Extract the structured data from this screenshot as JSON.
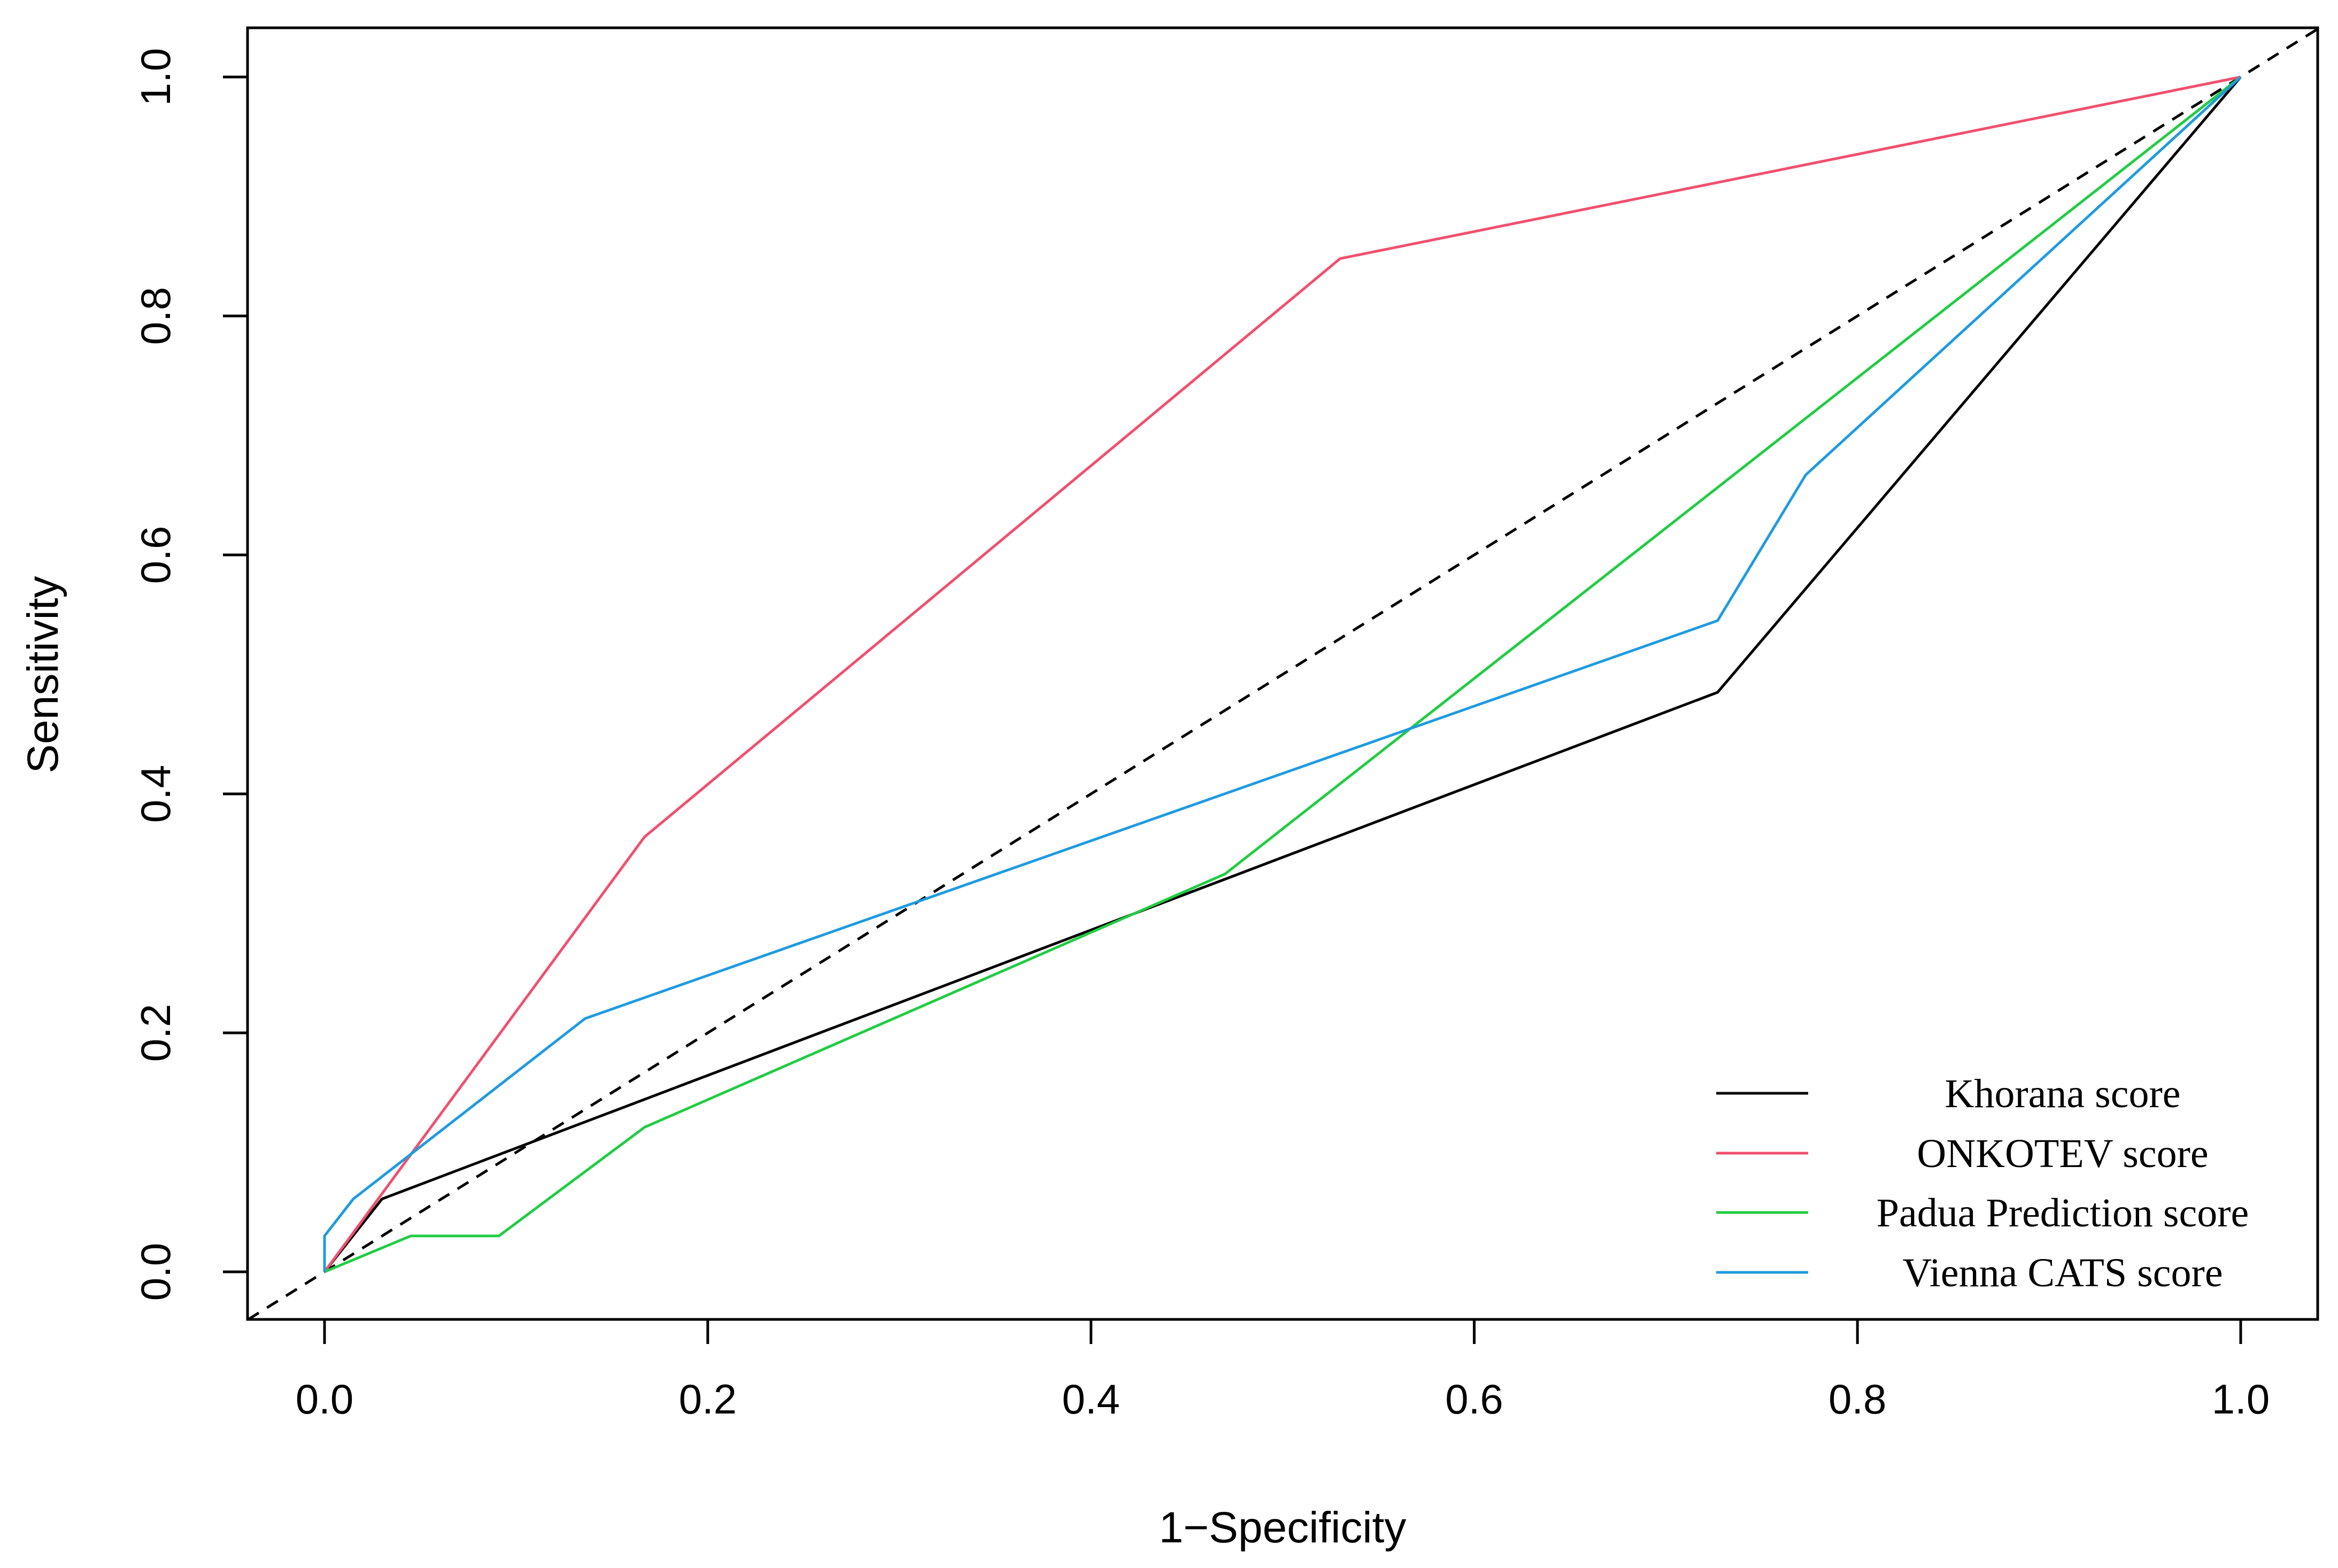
{
  "chart_data": {
    "type": "line",
    "title": "",
    "xlabel": "1−Specificity",
    "ylabel": "Sensitivity",
    "xlim": [
      -0.04,
      1.04
    ],
    "ylim": [
      -0.04,
      1.04
    ],
    "xticks": [
      0.0,
      0.2,
      0.4,
      0.6,
      0.8,
      1.0
    ],
    "yticks": [
      0.0,
      0.2,
      0.4,
      0.6,
      0.8,
      1.0
    ],
    "xtick_labels": [
      "0.0",
      "0.2",
      "0.4",
      "0.6",
      "0.8",
      "1.0"
    ],
    "ytick_labels": [
      "0.0",
      "0.2",
      "0.4",
      "0.6",
      "0.8",
      "1.0"
    ],
    "grid": false,
    "legend_position": "bottom-right",
    "reference_line": {
      "name": "chance",
      "style": "dashed",
      "color": "#000000",
      "x": [
        -0.04,
        1.04
      ],
      "y": [
        -0.04,
        1.04
      ]
    },
    "series": [
      {
        "name": "Khorana score",
        "color": "#000000",
        "x": [
          0.0,
          0.03,
          0.727,
          1.0
        ],
        "y": [
          0.0,
          0.061,
          0.485,
          1.0
        ]
      },
      {
        "name": "ONKOTEV score",
        "color": "#f0506e",
        "x": [
          0.0,
          0.167,
          0.53,
          1.0
        ],
        "y": [
          0.0,
          0.364,
          0.848,
          1.0
        ]
      },
      {
        "name": "Padua Prediction score",
        "color": "#22cc44",
        "x": [
          0.0,
          0.045,
          0.091,
          0.167,
          0.47,
          1.0
        ],
        "y": [
          0.0,
          0.03,
          0.03,
          0.121,
          0.333,
          1.0
        ]
      },
      {
        "name": "Vienna CATS score",
        "color": "#1f9be0",
        "x": [
          0.0,
          0.0,
          0.015,
          0.136,
          0.727,
          0.773,
          1.0
        ],
        "y": [
          0.0,
          0.03,
          0.061,
          0.212,
          0.545,
          0.667,
          1.0
        ]
      }
    ]
  }
}
